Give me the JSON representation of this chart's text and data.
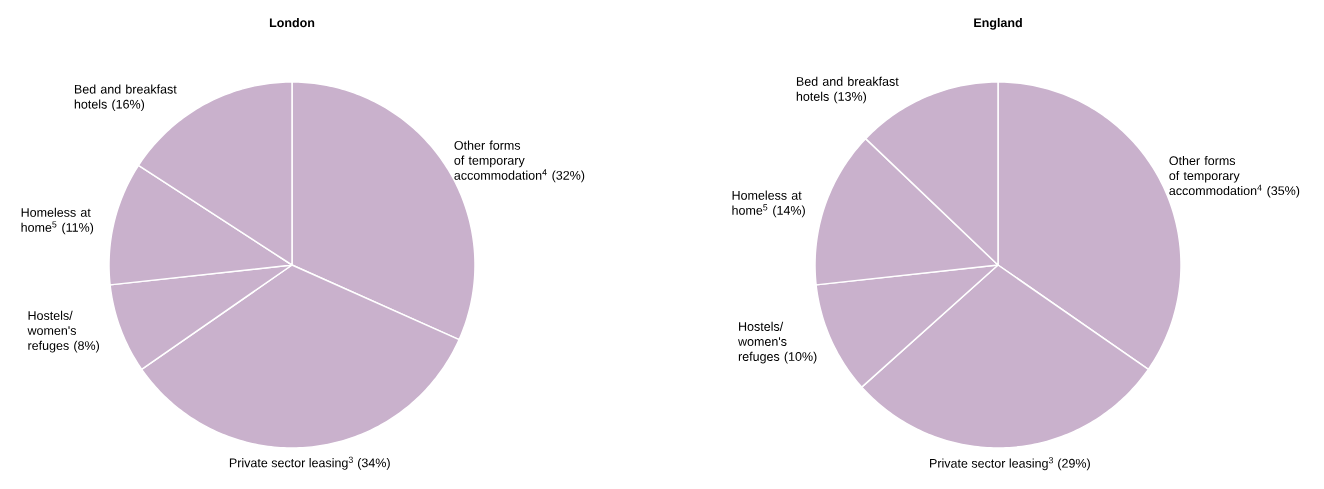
{
  "chart_data": [
    {
      "type": "pie",
      "title": "London",
      "categories": [
        "Other forms of temporary accommodation$^{4}$",
        "Private sector leasing$^{3}$",
        "Hostels/ women's refuges",
        "Homeless at home$^{5}$",
        "Bed and breakfast hotels"
      ],
      "values": [
        32,
        34,
        8,
        11,
        16
      ],
      "value_labels": [
        "(32%)",
        "(34%)",
        "(8%)",
        "(11%)",
        "(16%)"
      ],
      "colors": [
        "#c9b1cc",
        "#c9b1cc",
        "#c9b1cc",
        "#c9b1cc",
        "#c9b1cc"
      ]
    },
    {
      "type": "pie",
      "title": "England",
      "categories": [
        "Other forms of temporary accommodation$^{4}$",
        "Private sector leasing$^{3}$",
        "Hostels/ women's refuges",
        "Homeless at home$^{5}$",
        "Bed and breakfast hotels"
      ],
      "values": [
        35,
        29,
        10,
        14,
        13
      ],
      "value_labels": [
        "(35%)",
        "(29%)",
        "(10%)",
        "(14%)",
        "(13%)"
      ],
      "colors": [
        "#c9b1cc",
        "#c9b1cc",
        "#c9b1cc",
        "#c9b1cc",
        "#c9b1cc"
      ]
    }
  ]
}
